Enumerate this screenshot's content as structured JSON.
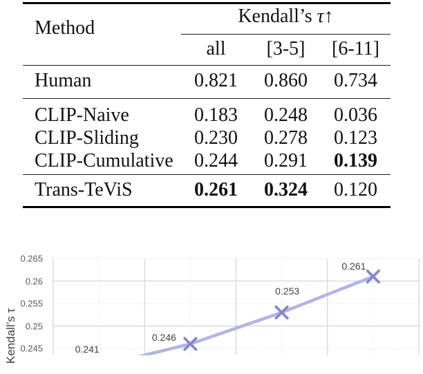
{
  "table": {
    "col_method": "Method",
    "group_header": {
      "prefix": "Kendall’s ",
      "tau": "τ",
      "arrow": "↑"
    },
    "subcols": [
      "all",
      "[3-5]",
      "[6-11]"
    ],
    "rows": [
      {
        "method": "Human",
        "v": [
          "0.821",
          "0.860",
          "0.734"
        ]
      },
      {
        "method": "CLIP-Naive",
        "v": [
          "0.183",
          "0.248",
          "0.036"
        ]
      },
      {
        "method": "CLIP-Sliding",
        "v": [
          "0.230",
          "0.278",
          "0.123"
        ]
      },
      {
        "method": "CLIP-Cumulative",
        "v": [
          "0.244",
          "0.291",
          "0.139"
        ]
      },
      {
        "method": "Trans-TeViS",
        "v": [
          "0.261",
          "0.324",
          "0.120"
        ]
      }
    ]
  },
  "chart_data": {
    "type": "line",
    "series": [
      {
        "name": "Kendall's τ",
        "values": [
          0.241,
          0.246,
          0.253,
          0.261
        ]
      }
    ],
    "point_labels": [
      "0.241",
      "0.246",
      "0.253",
      "0.261"
    ],
    "ylabel": "Kendall’s τ",
    "yticks": [
      "0.265",
      "0.26",
      "0.255",
      "0.25",
      "0.245"
    ],
    "ymax": 0.265,
    "ytick_step": 0.005,
    "ylim_visible": [
      0.245,
      0.265
    ],
    "marker": "x",
    "grid": true,
    "legend": "none",
    "line_color": "#b0b6e0",
    "marker_color": "#8388cb",
    "grid_solid_color": "#d4d4d4",
    "grid_dotted_color": "#dedede"
  }
}
